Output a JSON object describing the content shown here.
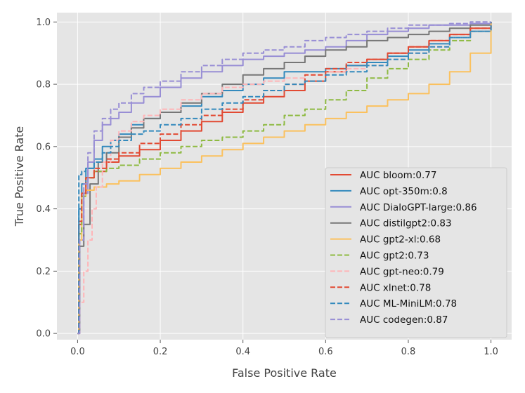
{
  "chart_data": {
    "type": "line",
    "title": "",
    "xlabel": "False Positive Rate",
    "ylabel": "True Positive Rate",
    "xlim": [
      -0.05,
      1.05
    ],
    "ylim": [
      -0.02,
      1.03
    ],
    "xticks": [
      "0.0",
      "0.2",
      "0.4",
      "0.6",
      "0.8",
      "1.0"
    ],
    "yticks": [
      "0.0",
      "0.2",
      "0.4",
      "0.6",
      "0.8",
      "1.0"
    ],
    "grid": true,
    "legend_position": "lower-right",
    "series": [
      {
        "name": "AUC bloom:0.77",
        "color": "#E24A33",
        "dash": "solid",
        "x": [
          0,
          0.003,
          0.01,
          0.02,
          0.04,
          0.07,
          0.1,
          0.15,
          0.2,
          0.25,
          0.3,
          0.35,
          0.4,
          0.45,
          0.5,
          0.55,
          0.6,
          0.65,
          0.7,
          0.75,
          0.8,
          0.85,
          0.9,
          0.95,
          1.0
        ],
        "y": [
          0,
          0.35,
          0.45,
          0.5,
          0.52,
          0.55,
          0.57,
          0.59,
          0.62,
          0.65,
          0.68,
          0.71,
          0.74,
          0.76,
          0.78,
          0.81,
          0.84,
          0.86,
          0.88,
          0.9,
          0.92,
          0.94,
          0.96,
          0.98,
          1.0
        ]
      },
      {
        "name": "AUC opt-350m:0.8",
        "color": "#348ABD",
        "dash": "solid",
        "x": [
          0,
          0.003,
          0.01,
          0.02,
          0.04,
          0.06,
          0.08,
          0.1,
          0.13,
          0.16,
          0.2,
          0.25,
          0.3,
          0.35,
          0.4,
          0.45,
          0.5,
          0.55,
          0.6,
          0.65,
          0.7,
          0.75,
          0.8,
          0.85,
          0.9,
          0.95,
          1.0
        ],
        "y": [
          0,
          0.4,
          0.48,
          0.53,
          0.56,
          0.6,
          0.62,
          0.64,
          0.67,
          0.69,
          0.71,
          0.73,
          0.76,
          0.78,
          0.8,
          0.82,
          0.84,
          0.84,
          0.85,
          0.86,
          0.87,
          0.89,
          0.91,
          0.93,
          0.95,
          0.97,
          1.0
        ]
      },
      {
        "name": "AUC DialoGPT-large:0.86",
        "color": "#988ED5",
        "dash": "solid",
        "x": [
          0,
          0.005,
          0.015,
          0.025,
          0.04,
          0.06,
          0.08,
          0.1,
          0.13,
          0.16,
          0.2,
          0.25,
          0.3,
          0.35,
          0.4,
          0.45,
          0.5,
          0.55,
          0.6,
          0.65,
          0.7,
          0.75,
          0.8,
          0.85,
          0.9,
          0.95,
          1.0
        ],
        "y": [
          0,
          0.3,
          0.45,
          0.55,
          0.62,
          0.67,
          0.69,
          0.71,
          0.74,
          0.76,
          0.79,
          0.82,
          0.84,
          0.86,
          0.88,
          0.89,
          0.9,
          0.91,
          0.92,
          0.94,
          0.96,
          0.97,
          0.98,
          0.99,
          0.99,
          0.995,
          1.0
        ]
      },
      {
        "name": "AUC distilgpt2:0.83",
        "color": "#777777",
        "dash": "solid",
        "x": [
          0,
          0.005,
          0.015,
          0.03,
          0.05,
          0.07,
          0.1,
          0.13,
          0.16,
          0.2,
          0.25,
          0.3,
          0.35,
          0.4,
          0.45,
          0.5,
          0.55,
          0.6,
          0.65,
          0.7,
          0.75,
          0.8,
          0.85,
          0.9,
          0.95,
          1.0
        ],
        "y": [
          0,
          0.28,
          0.35,
          0.48,
          0.55,
          0.58,
          0.63,
          0.66,
          0.69,
          0.71,
          0.74,
          0.77,
          0.8,
          0.83,
          0.85,
          0.87,
          0.89,
          0.91,
          0.92,
          0.94,
          0.95,
          0.96,
          0.97,
          0.98,
          0.99,
          1.0
        ]
      },
      {
        "name": "AUC gpt2-xl:0.68",
        "color": "#FBC15E",
        "dash": "solid",
        "x": [
          0,
          0.003,
          0.01,
          0.02,
          0.04,
          0.07,
          0.1,
          0.15,
          0.2,
          0.25,
          0.3,
          0.35,
          0.4,
          0.45,
          0.5,
          0.55,
          0.6,
          0.65,
          0.7,
          0.75,
          0.8,
          0.85,
          0.9,
          0.95,
          1.0
        ],
        "y": [
          0,
          0.3,
          0.44,
          0.46,
          0.47,
          0.48,
          0.49,
          0.51,
          0.53,
          0.55,
          0.57,
          0.59,
          0.61,
          0.63,
          0.65,
          0.67,
          0.69,
          0.71,
          0.73,
          0.75,
          0.77,
          0.8,
          0.84,
          0.9,
          1.0
        ]
      },
      {
        "name": "AUC gpt2:0.73",
        "color": "#8EBA42",
        "dash": "dashed",
        "x": [
          0,
          0.003,
          0.01,
          0.02,
          0.04,
          0.07,
          0.1,
          0.15,
          0.2,
          0.25,
          0.3,
          0.35,
          0.4,
          0.45,
          0.5,
          0.55,
          0.6,
          0.65,
          0.7,
          0.75,
          0.8,
          0.85,
          0.9,
          0.95,
          1.0
        ],
        "y": [
          0,
          0.32,
          0.44,
          0.5,
          0.52,
          0.53,
          0.54,
          0.56,
          0.58,
          0.6,
          0.62,
          0.63,
          0.65,
          0.67,
          0.7,
          0.72,
          0.75,
          0.78,
          0.82,
          0.85,
          0.88,
          0.91,
          0.94,
          0.97,
          1.0
        ]
      },
      {
        "name": "AUC gpt-neo:0.79",
        "color": "#FFB5B8",
        "dash": "dashed",
        "x": [
          0,
          0.005,
          0.015,
          0.025,
          0.035,
          0.045,
          0.06,
          0.08,
          0.1,
          0.13,
          0.16,
          0.2,
          0.25,
          0.3,
          0.35,
          0.4,
          0.45,
          0.5,
          0.55,
          0.6,
          0.65,
          0.7,
          0.75,
          0.8,
          0.85,
          0.9,
          0.95,
          1.0
        ],
        "y": [
          0,
          0.1,
          0.2,
          0.3,
          0.4,
          0.47,
          0.55,
          0.62,
          0.65,
          0.68,
          0.7,
          0.72,
          0.75,
          0.77,
          0.79,
          0.8,
          0.81,
          0.82,
          0.83,
          0.84,
          0.85,
          0.86,
          0.88,
          0.9,
          0.92,
          0.95,
          0.97,
          1.0
        ]
      },
      {
        "name": "AUC xlnet:0.78",
        "color": "#E24A33",
        "dash": "dashed",
        "x": [
          0,
          0.003,
          0.01,
          0.02,
          0.04,
          0.07,
          0.1,
          0.15,
          0.2,
          0.25,
          0.3,
          0.35,
          0.4,
          0.45,
          0.5,
          0.55,
          0.6,
          0.65,
          0.7,
          0.75,
          0.8,
          0.85,
          0.9,
          0.95,
          1.0
        ],
        "y": [
          0,
          0.36,
          0.45,
          0.5,
          0.53,
          0.56,
          0.58,
          0.61,
          0.64,
          0.67,
          0.7,
          0.72,
          0.75,
          0.78,
          0.8,
          0.83,
          0.85,
          0.87,
          0.88,
          0.9,
          0.92,
          0.94,
          0.96,
          0.98,
          1.0
        ]
      },
      {
        "name": "AUC ML-MiniLM:0.78",
        "color": "#348ABD",
        "dash": "dashed",
        "x": [
          0,
          0.003,
          0.01,
          0.02,
          0.04,
          0.06,
          0.08,
          0.1,
          0.13,
          0.16,
          0.2,
          0.25,
          0.3,
          0.35,
          0.4,
          0.45,
          0.5,
          0.55,
          0.6,
          0.65,
          0.7,
          0.75,
          0.8,
          0.85,
          0.9,
          0.95,
          1.0
        ],
        "y": [
          0,
          0.51,
          0.52,
          0.53,
          0.55,
          0.58,
          0.6,
          0.62,
          0.64,
          0.65,
          0.67,
          0.69,
          0.72,
          0.74,
          0.76,
          0.78,
          0.8,
          0.81,
          0.83,
          0.84,
          0.86,
          0.88,
          0.9,
          0.92,
          0.95,
          0.97,
          1.0
        ]
      },
      {
        "name": "AUC codegen:0.87",
        "color": "#988ED5",
        "dash": "dashed",
        "x": [
          0,
          0.005,
          0.015,
          0.025,
          0.04,
          0.06,
          0.08,
          0.1,
          0.13,
          0.16,
          0.2,
          0.25,
          0.3,
          0.35,
          0.4,
          0.45,
          0.5,
          0.55,
          0.6,
          0.65,
          0.7,
          0.75,
          0.8,
          0.85,
          0.9,
          0.95,
          1.0
        ],
        "y": [
          0,
          0.3,
          0.48,
          0.58,
          0.65,
          0.69,
          0.72,
          0.74,
          0.77,
          0.79,
          0.81,
          0.84,
          0.86,
          0.88,
          0.9,
          0.91,
          0.92,
          0.94,
          0.95,
          0.96,
          0.97,
          0.98,
          0.99,
          0.99,
          0.995,
          1.0,
          1.0
        ]
      }
    ]
  }
}
